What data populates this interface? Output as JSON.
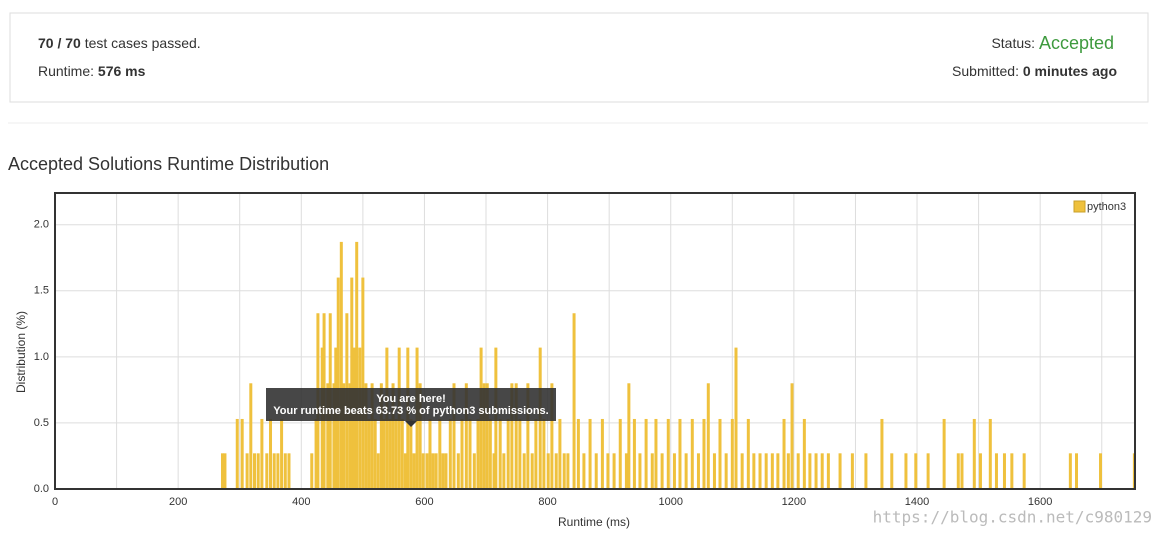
{
  "summary": {
    "passed": "70 / 70",
    "passed_text": "test cases passed.",
    "runtime_label": "Runtime:",
    "runtime": "576 ms",
    "status_label": "Status:",
    "status": "Accepted",
    "submitted_label": "Submitted:",
    "submitted": "0 minutes ago"
  },
  "chart_data": {
    "type": "bar",
    "title": "Accepted Solutions Runtime Distribution",
    "xlabel": "Runtime (ms)",
    "ylabel": "Distribution (%)",
    "xlim": [
      0,
      1754
    ],
    "ylim": [
      0,
      2.24
    ],
    "xticks": [
      0,
      200,
      400,
      600,
      800,
      1000,
      1200,
      1400,
      1600
    ],
    "xminorticks": [
      100,
      300,
      500,
      700,
      900,
      1100,
      1300,
      1500,
      1700
    ],
    "yticks": [
      {
        "value": 0,
        "label": "0.0"
      },
      0.5,
      {
        "value": 1,
        "label": "1.0"
      },
      1.5,
      {
        "value": 2,
        "label": "2.0"
      }
    ],
    "grid": true,
    "legend": "top-right",
    "tooltip": [
      "You are here!",
      "Your runtime beats 63.73 % of python3 submissions."
    ],
    "x": [
      272,
      276,
      296,
      304,
      312,
      318,
      324,
      330,
      336,
      344,
      350,
      356,
      362,
      368,
      374,
      380,
      417,
      424,
      427,
      434,
      437,
      443,
      447,
      453,
      456,
      460,
      465,
      469,
      474,
      479,
      482,
      486,
      490,
      495,
      500,
      505,
      510,
      515,
      520,
      525,
      530,
      534,
      539,
      544,
      549,
      554,
      559,
      564,
      569,
      573,
      578,
      583,
      588,
      593,
      598,
      604,
      609,
      614,
      619,
      625,
      630,
      635,
      642,
      648,
      655,
      661,
      668,
      674,
      681,
      687,
      692,
      697,
      702,
      707,
      713,
      716,
      723,
      729,
      736,
      742,
      749,
      755,
      762,
      768,
      775,
      781,
      788,
      794,
      801,
      807,
      814,
      820,
      827,
      833,
      843,
      850,
      859,
      869,
      879,
      889,
      898,
      908,
      918,
      928,
      932,
      941,
      950,
      960,
      970,
      976,
      986,
      996,
      1006,
      1015,
      1025,
      1035,
      1045,
      1054,
      1061,
      1071,
      1080,
      1090,
      1100,
      1106,
      1116,
      1126,
      1135,
      1145,
      1155,
      1165,
      1174,
      1184,
      1191,
      1197,
      1207,
      1217,
      1226,
      1236,
      1246,
      1256,
      1275,
      1295,
      1317,
      1343,
      1359,
      1382,
      1398,
      1418,
      1444,
      1467,
      1473,
      1493,
      1503,
      1519,
      1529,
      1542,
      1554,
      1574,
      1649,
      1659,
      1698,
      1753
    ],
    "series": [
      {
        "name": "python3",
        "color": "#efc13d",
        "values": [
          0.27,
          0.27,
          0.53,
          0.53,
          0.27,
          0.8,
          0.27,
          0.27,
          0.53,
          0.27,
          0.53,
          0.27,
          0.27,
          0.53,
          0.27,
          0.27,
          0.27,
          0.53,
          1.33,
          1.07,
          1.33,
          0.8,
          1.33,
          0.8,
          1.07,
          1.6,
          1.87,
          0.8,
          1.33,
          0.8,
          1.6,
          1.07,
          1.87,
          1.07,
          1.6,
          0.8,
          0.53,
          0.8,
          0.53,
          0.27,
          0.8,
          0.53,
          1.07,
          0.53,
          0.8,
          0.53,
          1.07,
          0.53,
          0.27,
          1.07,
          0.53,
          0.27,
          1.07,
          0.8,
          0.27,
          0.27,
          0.53,
          0.27,
          0.27,
          0.53,
          0.27,
          0.27,
          0.53,
          0.8,
          0.27,
          0.53,
          0.8,
          0.53,
          0.27,
          0.53,
          1.07,
          0.8,
          0.8,
          0.53,
          0.27,
          1.07,
          0.53,
          0.27,
          0.53,
          0.8,
          0.8,
          0.53,
          0.27,
          0.8,
          0.27,
          0.53,
          1.07,
          0.53,
          0.27,
          0.8,
          0.27,
          0.53,
          0.27,
          0.27,
          1.33,
          0.53,
          0.27,
          0.53,
          0.27,
          0.53,
          0.27,
          0.27,
          0.53,
          0.27,
          0.8,
          0.53,
          0.27,
          0.53,
          0.27,
          0.53,
          0.27,
          0.53,
          0.27,
          0.53,
          0.27,
          0.53,
          0.27,
          0.53,
          0.8,
          0.27,
          0.53,
          0.27,
          0.53,
          1.07,
          0.27,
          0.53,
          0.27,
          0.27,
          0.27,
          0.27,
          0.27,
          0.53,
          0.27,
          0.8,
          0.27,
          0.53,
          0.27,
          0.27,
          0.27,
          0.27,
          0.27,
          0.27,
          0.27,
          0.53,
          0.27,
          0.27,
          0.27,
          0.27,
          0.53,
          0.27,
          0.27,
          0.53,
          0.27,
          0.53,
          0.27,
          0.27,
          0.27,
          0.27,
          0.27,
          0.27,
          0.27,
          0.27
        ]
      }
    ]
  },
  "watermark": "https://blog.csdn.net/c980129"
}
